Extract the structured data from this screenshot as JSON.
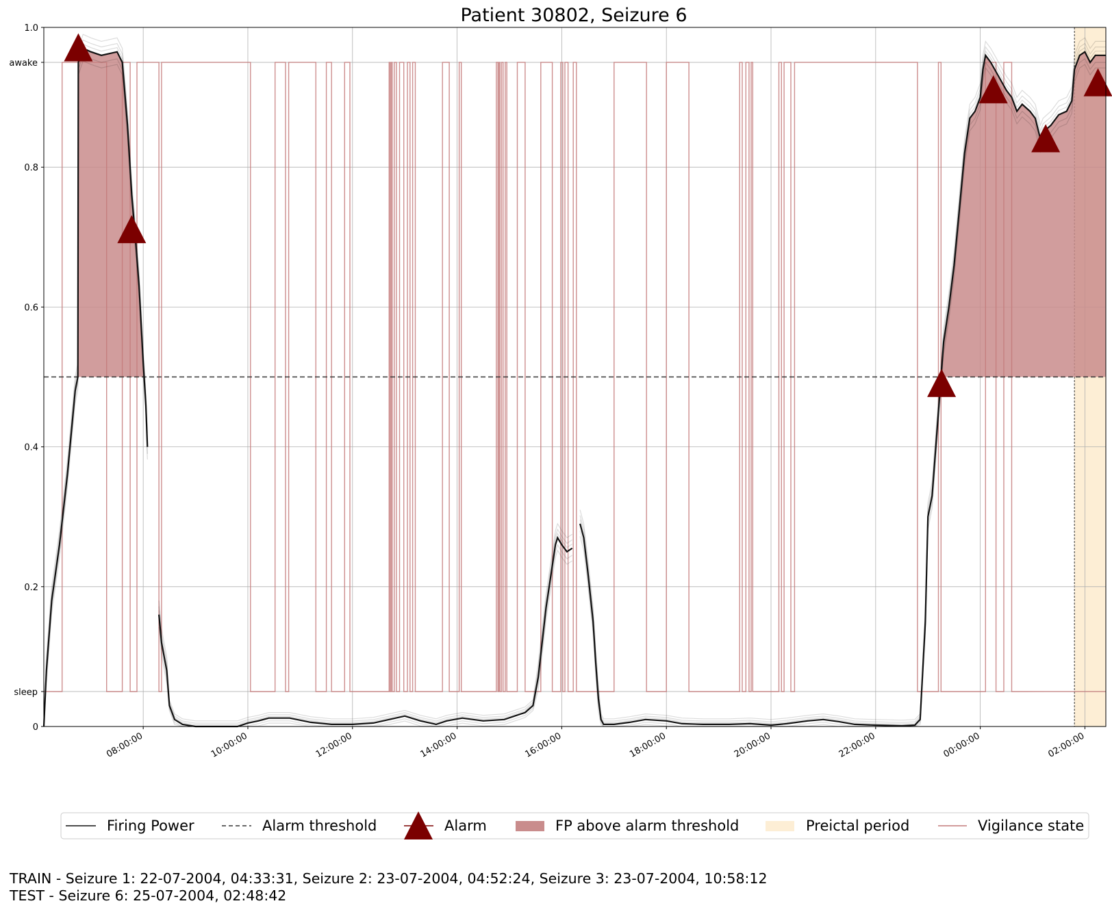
{
  "chart_data": {
    "type": "line",
    "title": "Patient 30802, Seizure 6",
    "xlabel": "",
    "ylabel": "",
    "ylim": [
      0,
      1
    ],
    "grid": true,
    "legend_placement": "bottom-center",
    "y_ticks": [
      "0",
      "0.2",
      "0.4",
      "0.6",
      "0.8",
      "1.0"
    ],
    "vigilance_ticks": [
      {
        "label": "sleep",
        "value": 0.05
      },
      {
        "label": "awake",
        "value": 0.95
      }
    ],
    "x_range_hours": [
      6.1,
      26.4
    ],
    "x_ticks": [
      {
        "label": "08:00:00",
        "hour": 8
      },
      {
        "label": "10:00:00",
        "hour": 10
      },
      {
        "label": "12:00:00",
        "hour": 12
      },
      {
        "label": "14:00:00",
        "hour": 14
      },
      {
        "label": "16:00:00",
        "hour": 16
      },
      {
        "label": "18:00:00",
        "hour": 18
      },
      {
        "label": "20:00:00",
        "hour": 20
      },
      {
        "label": "22:00:00",
        "hour": 22
      },
      {
        "label": "00:00:00",
        "hour": 24
      },
      {
        "label": "02:00:00",
        "hour": 26
      }
    ],
    "alarm_threshold": 0.5,
    "preictal_period_hours": [
      25.8,
      26.4
    ],
    "firing_power": {
      "name": "Firing Power",
      "segments": [
        [
          [
            6.1,
            0.0
          ],
          [
            6.15,
            0.08
          ],
          [
            6.25,
            0.18
          ],
          [
            6.4,
            0.26
          ],
          [
            6.55,
            0.36
          ],
          [
            6.7,
            0.48
          ],
          [
            6.75,
            0.5
          ],
          [
            6.76,
            0.95
          ],
          [
            6.85,
            0.97
          ],
          [
            7.0,
            0.965
          ],
          [
            7.2,
            0.96
          ],
          [
            7.5,
            0.965
          ],
          [
            7.6,
            0.95
          ],
          [
            7.7,
            0.86
          ],
          [
            7.78,
            0.76
          ],
          [
            7.85,
            0.7
          ],
          [
            7.92,
            0.63
          ],
          [
            8.0,
            0.52
          ],
          [
            8.05,
            0.46
          ],
          [
            8.08,
            0.4
          ]
        ],
        [
          [
            8.3,
            0.16
          ],
          [
            8.35,
            0.12
          ],
          [
            8.45,
            0.08
          ],
          [
            8.5,
            0.03
          ],
          [
            8.6,
            0.01
          ],
          [
            8.75,
            0.003
          ],
          [
            9.0,
            0.0
          ],
          [
            9.8,
            0.0
          ],
          [
            10.0,
            0.005
          ],
          [
            10.2,
            0.008
          ],
          [
            10.4,
            0.012
          ],
          [
            10.8,
            0.012
          ],
          [
            11.2,
            0.006
          ],
          [
            11.6,
            0.003
          ],
          [
            12.0,
            0.003
          ],
          [
            12.4,
            0.005
          ],
          [
            12.7,
            0.01
          ],
          [
            13.0,
            0.015
          ],
          [
            13.3,
            0.008
          ],
          [
            13.6,
            0.003
          ],
          [
            13.8,
            0.008
          ],
          [
            14.1,
            0.012
          ],
          [
            14.5,
            0.008
          ],
          [
            14.9,
            0.01
          ],
          [
            15.1,
            0.015
          ],
          [
            15.3,
            0.02
          ],
          [
            15.45,
            0.03
          ],
          [
            15.55,
            0.07
          ],
          [
            15.7,
            0.17
          ],
          [
            15.8,
            0.22
          ],
          [
            15.88,
            0.26
          ],
          [
            15.92,
            0.27
          ],
          [
            16.0,
            0.26
          ],
          [
            16.1,
            0.25
          ],
          [
            16.2,
            0.255
          ]
        ],
        [
          [
            16.35,
            0.29
          ],
          [
            16.42,
            0.27
          ],
          [
            16.5,
            0.22
          ],
          [
            16.6,
            0.15
          ],
          [
            16.65,
            0.09
          ],
          [
            16.7,
            0.04
          ],
          [
            16.75,
            0.01
          ],
          [
            16.8,
            0.003
          ],
          [
            17.0,
            0.003
          ],
          [
            17.3,
            0.006
          ],
          [
            17.6,
            0.01
          ],
          [
            18.0,
            0.008
          ],
          [
            18.3,
            0.004
          ],
          [
            18.7,
            0.003
          ],
          [
            19.2,
            0.003
          ],
          [
            19.6,
            0.004
          ],
          [
            20.0,
            0.002
          ],
          [
            20.3,
            0.004
          ],
          [
            20.7,
            0.008
          ],
          [
            21.0,
            0.01
          ],
          [
            21.3,
            0.007
          ],
          [
            21.6,
            0.003
          ],
          [
            22.0,
            0.002
          ],
          [
            22.5,
            0.001
          ],
          [
            22.75,
            0.002
          ],
          [
            22.85,
            0.01
          ],
          [
            22.95,
            0.15
          ],
          [
            23.0,
            0.3
          ],
          [
            23.08,
            0.33
          ],
          [
            23.15,
            0.4
          ],
          [
            23.25,
            0.5
          ],
          [
            23.3,
            0.55
          ],
          [
            23.4,
            0.6
          ],
          [
            23.5,
            0.66
          ],
          [
            23.6,
            0.74
          ],
          [
            23.7,
            0.82
          ],
          [
            23.8,
            0.87
          ],
          [
            23.9,
            0.88
          ],
          [
            24.0,
            0.9
          ],
          [
            24.05,
            0.94
          ],
          [
            24.1,
            0.96
          ],
          [
            24.2,
            0.95
          ],
          [
            24.35,
            0.93
          ],
          [
            24.5,
            0.91
          ],
          [
            24.6,
            0.9
          ],
          [
            24.7,
            0.88
          ],
          [
            24.8,
            0.89
          ],
          [
            24.95,
            0.88
          ],
          [
            25.05,
            0.87
          ],
          [
            25.15,
            0.84
          ],
          [
            25.2,
            0.85
          ],
          [
            25.35,
            0.86
          ],
          [
            25.5,
            0.875
          ],
          [
            25.65,
            0.88
          ],
          [
            25.75,
            0.895
          ],
          [
            25.8,
            0.94
          ],
          [
            25.9,
            0.96
          ],
          [
            26.0,
            0.965
          ],
          [
            26.1,
            0.95
          ],
          [
            26.2,
            0.96
          ],
          [
            26.3,
            0.96
          ],
          [
            26.4,
            0.96
          ]
        ]
      ]
    },
    "fp_above_threshold": {
      "name": "FP above alarm threshold",
      "intervals_hours": [
        [
          6.76,
          8.0
        ],
        [
          23.26,
          26.4
        ]
      ]
    },
    "alarms": {
      "name": "Alarm",
      "points": [
        [
          6.76,
          0.97
        ],
        [
          7.78,
          0.71
        ],
        [
          23.26,
          0.49
        ],
        [
          24.25,
          0.91
        ],
        [
          25.25,
          0.84
        ],
        [
          26.25,
          0.92
        ]
      ]
    },
    "vigilance_state": {
      "name": "Vigilance state",
      "awake_value": 0.95,
      "sleep_value": 0.05,
      "start_state": "sleep",
      "start_hour": 6.1,
      "end_hour": 26.4,
      "transitions_hours": [
        6.45,
        7.3,
        7.6,
        7.75,
        7.88,
        8.3,
        8.35,
        10.05,
        10.52,
        10.72,
        10.78,
        11.3,
        11.5,
        11.6,
        11.85,
        11.95,
        12.7,
        12.72,
        12.74,
        12.76,
        12.8,
        12.84,
        12.9,
        12.98,
        13.05,
        13.1,
        13.15,
        13.2,
        13.72,
        13.85,
        14.04,
        14.08,
        14.75,
        14.78,
        14.8,
        14.82,
        14.85,
        14.88,
        14.92,
        14.95,
        15.15,
        15.3,
        15.6,
        15.82,
        15.98,
        16.02,
        16.06,
        16.12,
        16.22,
        16.28,
        17.0,
        17.62,
        18.0,
        18.43,
        19.4,
        19.45,
        19.52,
        19.58,
        19.62,
        19.65,
        20.15,
        20.2,
        20.25,
        20.38,
        20.45,
        22.8,
        23.2,
        23.25,
        24.1,
        24.3,
        24.45,
        24.6
      ]
    },
    "legend": [
      "Firing Power",
      "Alarm threshold",
      "Alarm",
      "FP above alarm threshold",
      "Preictal period",
      "Vigilance state"
    ],
    "colors": {
      "firing_power": "#111111",
      "fp_fill": "#c98c8c",
      "alarm": "#7b0000",
      "vigilance": "#c47a7a",
      "preictal": "#fdeed5",
      "threshold": "#333333",
      "grid": "#b0b0b0"
    }
  },
  "footer": {
    "line1": "TRAIN - Seizure 1: 22-07-2004, 04:33:31, Seizure 2: 23-07-2004, 04:52:24, Seizure 3: 23-07-2004, 10:58:12",
    "line2": "TEST - Seizure 6: 25-07-2004, 02:48:42"
  }
}
